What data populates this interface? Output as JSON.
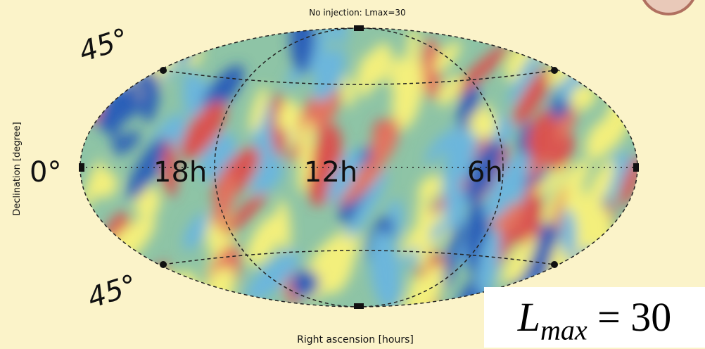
{
  "map": {
    "title": "No injection: Lmax=30",
    "y_axis_label": "Declination [degree]",
    "x_axis_label": "Right ascension [hours]",
    "declination_labels": [
      "45°",
      "0°",
      "45°"
    ],
    "hour_labels": [
      "18h",
      "12h",
      "6h"
    ],
    "lmax_label": {
      "symbol": "L",
      "subscript": "max",
      "rest": "= 30"
    }
  }
}
